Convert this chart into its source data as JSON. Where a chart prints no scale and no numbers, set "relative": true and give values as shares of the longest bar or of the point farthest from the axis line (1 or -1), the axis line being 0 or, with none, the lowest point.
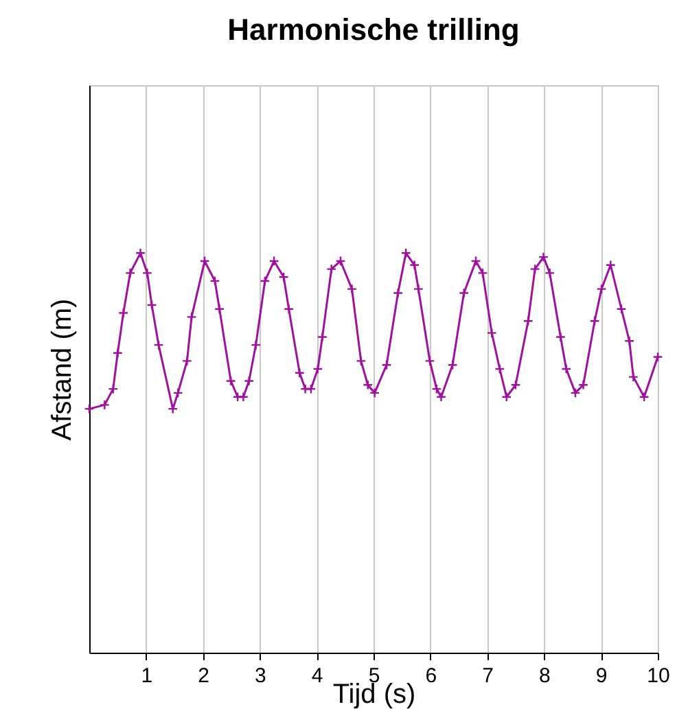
{
  "chart_data": {
    "type": "line",
    "title": "Harmonische trilling",
    "xlabel": "Tijd (s)",
    "ylabel": "Afstand (m)",
    "relative": true,
    "xlim": [
      0,
      10
    ],
    "xticks": [
      1,
      2,
      3,
      4,
      5,
      6,
      7,
      8,
      9,
      10
    ],
    "grid": "x",
    "marker": "cross",
    "tick_labels": "x",
    "x": [
      0,
      0.27,
      0.42,
      0.5,
      0.6,
      0.72,
      0.9,
      1.02,
      1.1,
      1.22,
      1.47,
      1.56,
      1.72,
      1.8,
      2.03,
      2.21,
      2.29,
      2.49,
      2.61,
      2.71,
      2.81,
      2.93,
      3.09,
      3.25,
      3.42,
      3.51,
      3.7,
      3.8,
      3.9,
      4.02,
      4.1,
      4.26,
      4.42,
      4.62,
      4.78,
      4.9,
      5.02,
      5.23,
      5.43,
      5.57,
      5.72,
      5.79,
      5.99,
      6.11,
      6.19,
      6.39,
      6.59,
      6.8,
      6.92,
      7.08,
      7.22,
      7.34,
      7.5,
      7.72,
      7.84,
      7.99,
      8.1,
      8.29,
      8.39,
      8.55,
      8.69,
      8.89,
      9.01,
      9.17,
      9.36,
      9.5,
      9.57,
      9.76,
      10
    ],
    "series": [
      {
        "color": "#a0109f",
        "values": [
          0.61,
          0.62,
          0.66,
          0.75,
          0.85,
          0.95,
          1,
          0.95,
          0.87,
          0.77,
          0.61,
          0.65,
          0.73,
          0.84,
          0.98,
          0.93,
          0.86,
          0.68,
          0.64,
          0.64,
          0.68,
          0.77,
          0.93,
          0.98,
          0.94,
          0.86,
          0.7,
          0.66,
          0.66,
          0.71,
          0.79,
          0.96,
          0.98,
          0.91,
          0.73,
          0.67,
          0.65,
          0.72,
          0.9,
          1,
          0.97,
          0.91,
          0.73,
          0.66,
          0.64,
          0.72,
          0.9,
          0.98,
          0.95,
          0.8,
          0.71,
          0.64,
          0.67,
          0.83,
          0.96,
          0.99,
          0.95,
          0.79,
          0.71,
          0.65,
          0.67,
          0.83,
          0.91,
          0.97,
          0.86,
          0.78,
          0.69,
          0.64,
          0.74
        ]
      }
    ]
  }
}
